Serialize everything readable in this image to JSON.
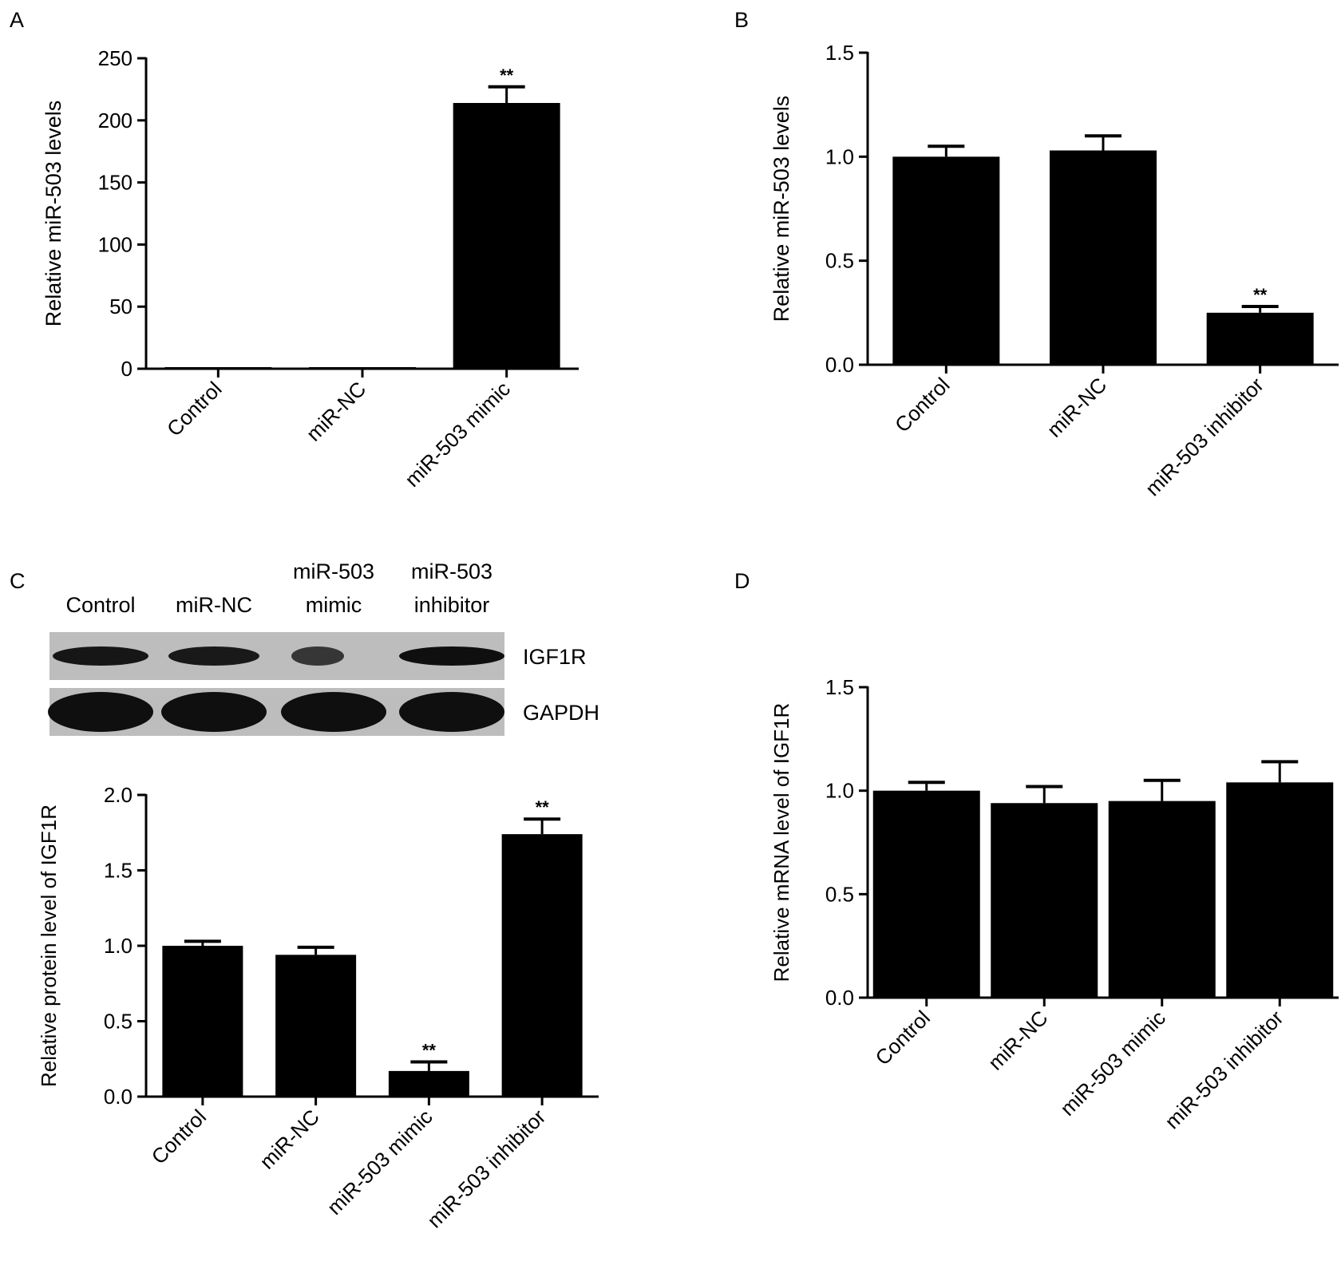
{
  "panel_letters": [
    "A",
    "B",
    "C",
    "D"
  ],
  "blot": {
    "lane_labels": [
      [
        "Control"
      ],
      [
        "miR-NC"
      ],
      [
        "miR-503",
        "mimic"
      ],
      [
        "miR-503",
        "inhibitor"
      ]
    ],
    "rows": [
      {
        "label": "IGF1R",
        "band_intensity": [
          0.9,
          0.85,
          0.45,
          1.0
        ]
      },
      {
        "label": "GAPDH",
        "band_intensity": [
          1.0,
          1.0,
          1.0,
          1.0
        ]
      }
    ],
    "colors": {
      "background": "#bdbdbd",
      "band": "#0f0f0f"
    }
  },
  "chart_data": [
    {
      "panel": "A",
      "type": "bar",
      "title": "",
      "xlabel": "",
      "ylabel": "Relative miR-503 levels",
      "categories": [
        "Control",
        "miR-NC",
        "miR-503 mimic"
      ],
      "values": [
        1,
        1,
        214
      ],
      "errors": [
        0,
        0,
        13
      ],
      "annotations": [
        "",
        "",
        "**"
      ],
      "ylim": [
        0,
        250
      ],
      "yticks": [
        0,
        50,
        100,
        150,
        200,
        250
      ],
      "tick_labels": [
        "0",
        "50",
        "100",
        "150",
        "200",
        "250"
      ]
    },
    {
      "panel": "B",
      "type": "bar",
      "title": "",
      "xlabel": "",
      "ylabel": "Relative miR-503 levels",
      "categories": [
        "Control",
        "miR-NC",
        "miR-503 inhibitor"
      ],
      "values": [
        1.0,
        1.03,
        0.25
      ],
      "errors": [
        0.05,
        0.07,
        0.03
      ],
      "annotations": [
        "",
        "",
        "**"
      ],
      "ylim": [
        0,
        1.5
      ],
      "yticks": [
        0,
        0.5,
        1.0,
        1.5
      ],
      "tick_labels": [
        "0.0",
        "0.5",
        "1.0",
        "1.5"
      ]
    },
    {
      "panel": "C",
      "type": "bar",
      "title": "",
      "xlabel": "",
      "ylabel": "Relative protein level of IGF1R",
      "categories": [
        "Control",
        "miR-NC",
        "miR-503 mimic",
        "miR-503 inhibitor"
      ],
      "values": [
        1.0,
        0.94,
        0.17,
        1.74
      ],
      "errors": [
        0.03,
        0.05,
        0.06,
        0.1
      ],
      "annotations": [
        "",
        "",
        "**",
        "**"
      ],
      "ylim": [
        0,
        2.0
      ],
      "yticks": [
        0,
        0.5,
        1.0,
        1.5,
        2.0
      ],
      "tick_labels": [
        "0.0",
        "0.5",
        "1.0",
        "1.5",
        "2.0"
      ]
    },
    {
      "panel": "D",
      "type": "bar",
      "title": "",
      "xlabel": "",
      "ylabel": "Relative mRNA level of IGF1R",
      "categories": [
        "Control",
        "miR-NC",
        "miR-503 mimic",
        "miR-503 inhibitor"
      ],
      "values": [
        1.0,
        0.94,
        0.95,
        1.04
      ],
      "errors": [
        0.04,
        0.08,
        0.1,
        0.1
      ],
      "annotations": [
        "",
        "",
        "",
        ""
      ],
      "ylim": [
        0,
        1.5
      ],
      "yticks": [
        0,
        0.5,
        1.0,
        1.5
      ],
      "tick_labels": [
        "0.0",
        "0.5",
        "1.0",
        "1.5"
      ]
    }
  ],
  "colors": {
    "bar": "#000000",
    "axis": "#000000",
    "text": "#000000"
  }
}
